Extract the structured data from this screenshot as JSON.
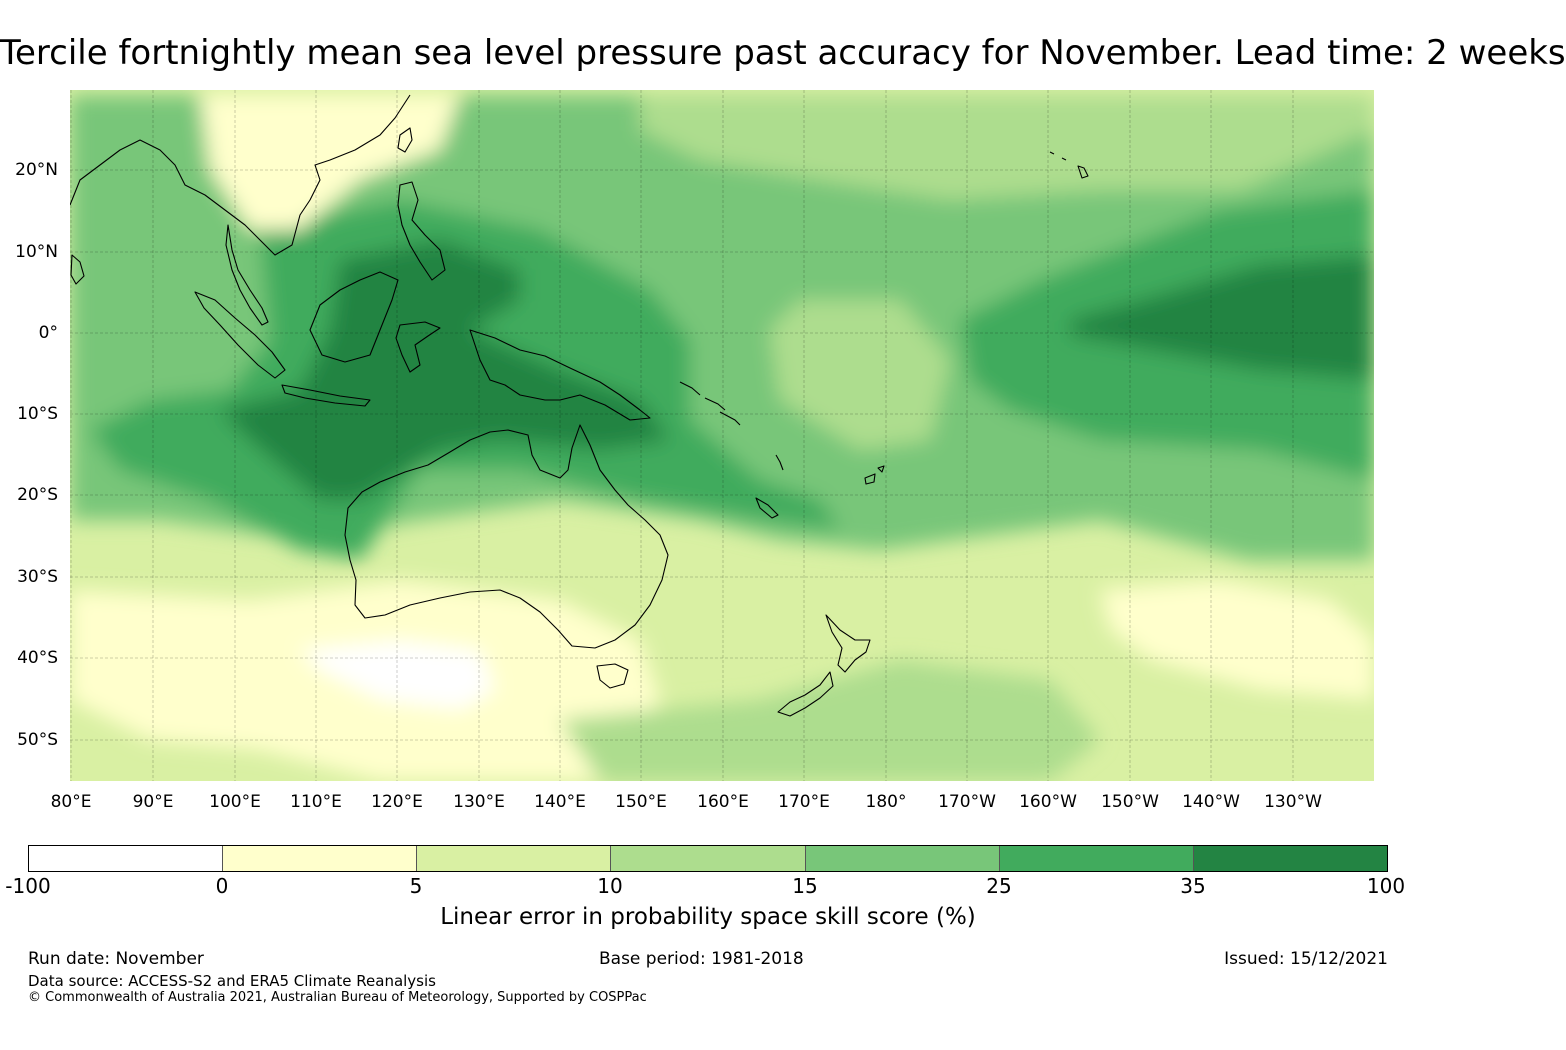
{
  "title": "Tercile fortnightly mean sea level pressure past accuracy for November. Lead time: 2 weeks",
  "map": {
    "longitude_labels": [
      "80°E",
      "90°E",
      "100°E",
      "110°E",
      "120°E",
      "130°E",
      "140°E",
      "150°E",
      "160°E",
      "170°E",
      "180°",
      "170°W",
      "160°W",
      "150°W",
      "140°W",
      "130°W"
    ],
    "latitude_labels": [
      "20°N",
      "10°N",
      "0°",
      "10°S",
      "20°S",
      "30°S",
      "40°S",
      "50°S"
    ],
    "regions": [
      "Indonesia",
      "Papua New Guinea",
      "Australia",
      "New Zealand",
      "Philippines",
      "Indochina",
      "Pacific Ocean",
      "Indian Ocean",
      "Southern Ocean"
    ]
  },
  "colorbar": {
    "label": "Linear error in probability space skill score (%)",
    "ticks": [
      "-100",
      "0",
      "5",
      "10",
      "15",
      "25",
      "35",
      "100"
    ],
    "colors": [
      "#ffffff",
      "#ffffcc",
      "#d9f0a3",
      "#addd8e",
      "#78c679",
      "#41ab5d",
      "#238443"
    ]
  },
  "footer": {
    "run_date": "Run date: November",
    "data_source": "Data source: ACCESS-S2 and ERA5 Climate Reanalysis",
    "copyright": "© Commonwealth of Australia 2021, Australian Bureau of Meteorology, Supported by COSPPac",
    "base_period": "Base period: 1981-2018",
    "issued": "Issued: 15/12/2021"
  }
}
